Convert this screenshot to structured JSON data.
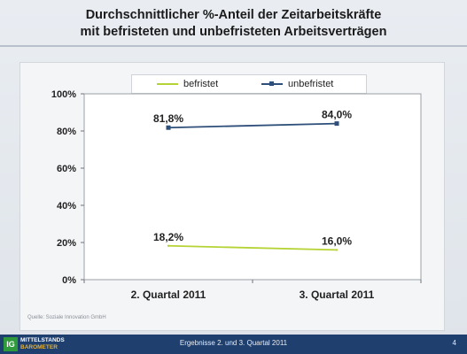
{
  "title_line1": "Durchschnittlicher %-Anteil der Zeitarbeitskräfte",
  "title_line2": "mit befristeten und unbefristeten Arbeitsverträgen",
  "source": "Quelle: Soziale Innovation GmbH",
  "footer": {
    "logo_badge": "IG",
    "logo_line1": "MITTELSTANDS",
    "logo_line2": "BAROMETER",
    "center_text": "Ergebnisse 2. und 3. Quartal 2011",
    "page_number": "4"
  },
  "chart_data": {
    "type": "line",
    "categories": [
      "2. Quartal 2011",
      "3. Quartal 2011"
    ],
    "series": [
      {
        "name": "befristet",
        "values": [
          18.2,
          16.0
        ],
        "labels": [
          "18,2%",
          "16,0%"
        ],
        "color": "#b5d334",
        "marker": "none"
      },
      {
        "name": "unbefristet",
        "values": [
          81.8,
          84.0
        ],
        "labels": [
          "81,8%",
          "84,0%"
        ],
        "color": "#2e4f7a",
        "marker": "square"
      }
    ],
    "ylim": [
      0,
      100
    ],
    "yticks": [
      0,
      20,
      40,
      60,
      80,
      100
    ],
    "ytick_labels": [
      "0%",
      "20%",
      "40%",
      "60%",
      "80%",
      "100%"
    ],
    "grid": false,
    "legend_position": "top"
  }
}
